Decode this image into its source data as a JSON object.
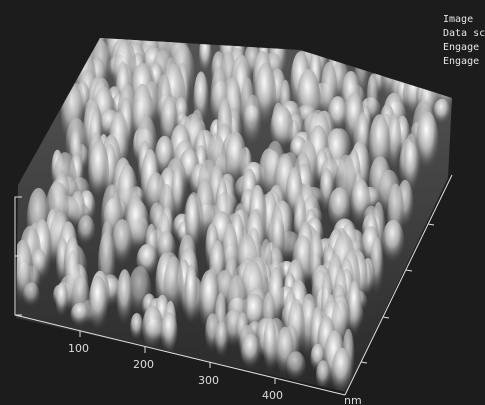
{
  "overlay": {
    "lines": [
      "Image",
      "Data sc",
      "Engage",
      "Engage"
    ]
  },
  "axis": {
    "x_tick_labels": [
      "100",
      "200",
      "300",
      "400"
    ],
    "unit": "nm"
  }
}
